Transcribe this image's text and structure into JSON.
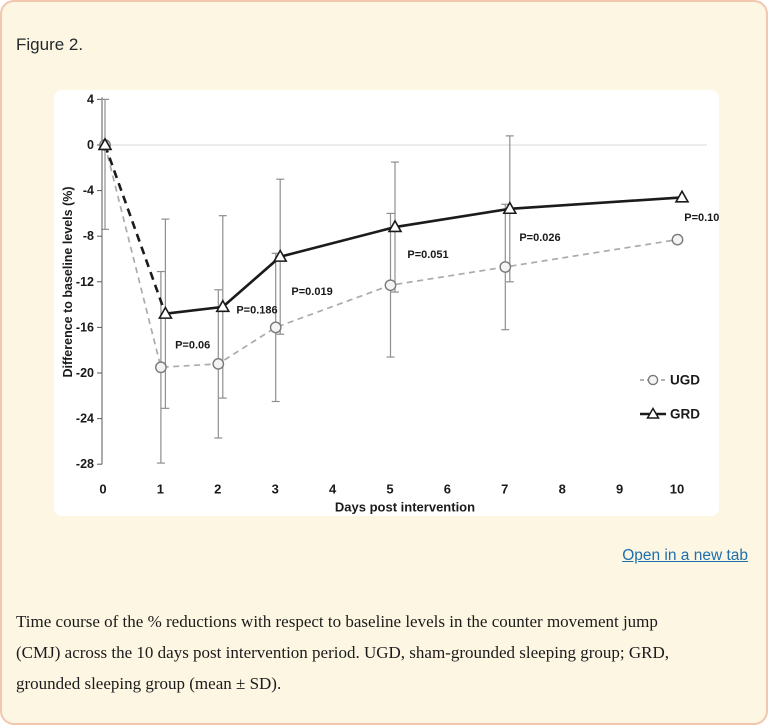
{
  "page": {
    "figure_label": "Figure 2.",
    "open_link": "Open in a new tab",
    "caption_lines": [
      "Time course of the % reductions with respect to baseline levels in the counter movement jump",
      "(CMJ) across the 10 days post intervention period. UGD, sham-grounded sleeping group; GRD,",
      "grounded sleeping group (mean ± SD)."
    ]
  },
  "chart_data": {
    "type": "line",
    "title": "",
    "xlabel": "Days post intervention",
    "ylabel": "Difference to baseline levels (%)",
    "xlim": [
      0,
      10
    ],
    "ylim": [
      -28,
      4
    ],
    "x_ticks": [
      0,
      1,
      2,
      3,
      4,
      5,
      6,
      7,
      8,
      9,
      10
    ],
    "y_ticks": [
      4,
      0,
      -4,
      -8,
      -12,
      -16,
      -20,
      -24,
      -28
    ],
    "grid": "zero-line-only",
    "legend_position": "right-inside",
    "baseline_error_bar": {
      "x": 0,
      "top": 4.0,
      "bottom": -7.4
    },
    "series": [
      {
        "name": "UGD",
        "marker": "circle",
        "line_style": "dashed",
        "line_color": "#ababab",
        "marker_stroke": "#7a7a7a",
        "marker_fill": "#f4f4f4",
        "x": [
          0,
          1,
          2,
          3,
          5,
          7,
          10
        ],
        "values": [
          0,
          -19.5,
          -19.2,
          -16.0,
          -12.3,
          -10.7,
          -8.3
        ],
        "sd": [
          null,
          8.4,
          6.5,
          6.5,
          6.3,
          5.5,
          null
        ]
      },
      {
        "name": "GRD",
        "marker": "triangle",
        "line_style": "solid-first-segment-dashed",
        "line_color": "#1b1b1b",
        "marker_stroke": "#1b1b1b",
        "marker_fill": "#ffffff",
        "x": [
          0,
          1,
          2,
          3,
          5,
          7,
          10
        ],
        "values": [
          0,
          -14.8,
          -14.2,
          -9.8,
          -7.2,
          -5.6,
          -4.6
        ],
        "sd": [
          null,
          8.3,
          8.0,
          6.8,
          5.7,
          6.4,
          null
        ]
      }
    ],
    "error_bar_color": "#8f8f8f",
    "zero_line_color": "#d8d8d8",
    "axis_color": "#595959",
    "p_value_labels": [
      {
        "text": "P=0.06",
        "x": 1.58,
        "y": -17.6
      },
      {
        "text": "P=0.186",
        "x": 2.7,
        "y": -14.5
      },
      {
        "text": "P=0.019",
        "x": 3.66,
        "y": -12.9
      },
      {
        "text": "P=0.051",
        "x": 5.68,
        "y": -9.65
      },
      {
        "text": "P=0.026",
        "x": 7.63,
        "y": -8.16
      },
      {
        "text": "P=0.10",
        "x": 10.45,
        "y": -6.4
      }
    ]
  }
}
